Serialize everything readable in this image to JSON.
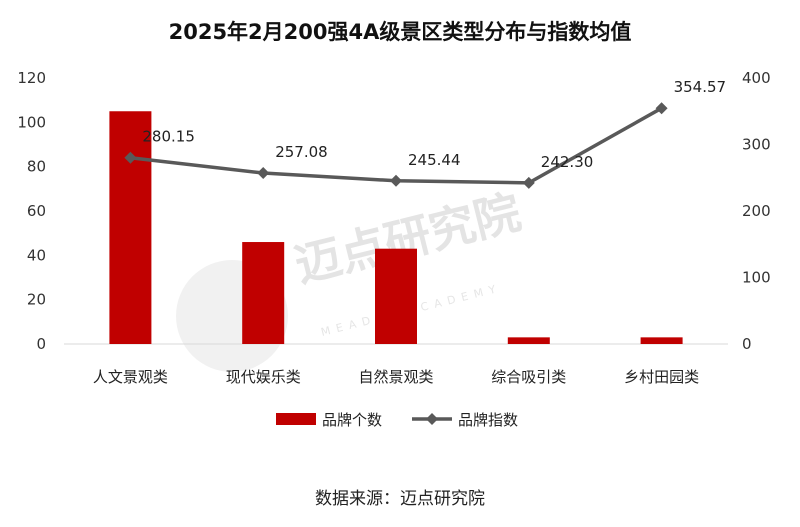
{
  "title": "2025年2月200强4A级景区类型分布与指数均值",
  "source": "数据来源：迈点研究院",
  "watermark": {
    "name": "迈点研究院",
    "sub": "MEADIN ACADEMY"
  },
  "chart_data": {
    "type": "bar",
    "title": "2025年2月200强4A级景区类型分布与指数均值",
    "categories": [
      "人文景观类",
      "现代娱乐类",
      "自然景观类",
      "综合吸引类",
      "乡村田园类"
    ],
    "series": [
      {
        "name": "品牌个数",
        "type": "bar",
        "axis": "left",
        "values": [
          105,
          46,
          43,
          3,
          3
        ],
        "color": "#c00000"
      },
      {
        "name": "品牌指数",
        "type": "line",
        "axis": "right",
        "values": [
          280.15,
          257.08,
          245.44,
          242.3,
          354.57
        ],
        "labels": [
          "280.15",
          "257.08",
          "245.44",
          "242.30",
          "354.57"
        ],
        "color": "#595959"
      }
    ],
    "y_left": {
      "min": 0,
      "max": 120,
      "ticks": [
        "0",
        "20",
        "40",
        "60",
        "80",
        "100",
        "120"
      ]
    },
    "y_right": {
      "min": 0,
      "max": 400,
      "ticks": [
        "0",
        "100",
        "200",
        "300",
        "400"
      ]
    },
    "grid": false,
    "legend": "bottom"
  }
}
